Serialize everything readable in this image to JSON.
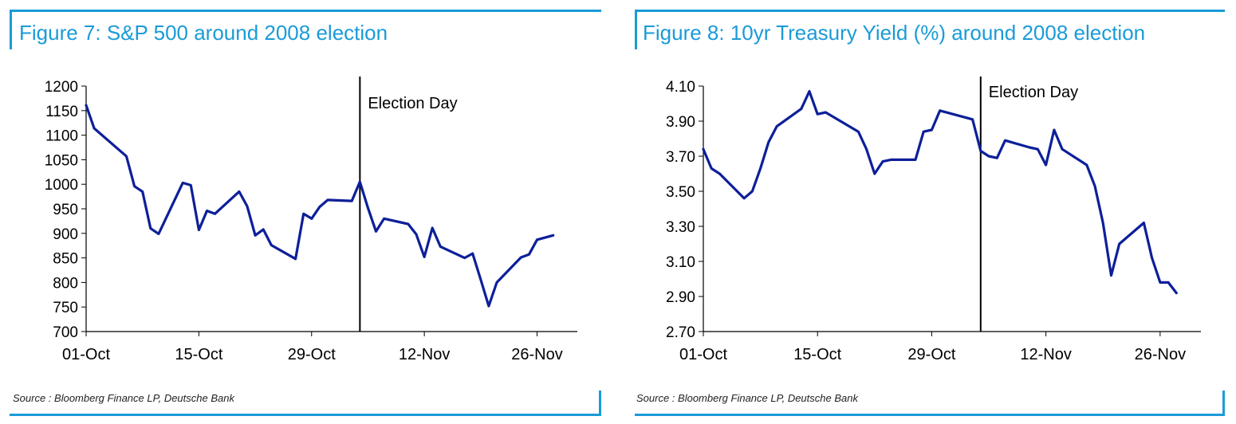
{
  "charts": [
    {
      "title": "Figure 7: S&P 500 around 2008 election",
      "source": "Source : Bloomberg Finance LP, Deutsche Bank",
      "line_color": "#0d1f99",
      "accent_color": "#1a9bd7",
      "chart_data": {
        "type": "line",
        "title": "Figure 7: S&P 500 around 2008 election",
        "xlabel": "",
        "ylabel": "",
        "ylim": [
          700,
          1200
        ],
        "yticks": [
          700,
          750,
          800,
          850,
          900,
          950,
          1000,
          1050,
          1100,
          1150,
          1200
        ],
        "ytick_labels": [
          "700",
          "750",
          "800",
          "850",
          "900",
          "950",
          "1000",
          "1050",
          "1100",
          "1150",
          "1200"
        ],
        "xlim": [
          "2008-10-01",
          "2008-12-01"
        ],
        "xticks": [
          "2008-10-01",
          "2008-10-15",
          "2008-10-29",
          "2008-11-12",
          "2008-11-26"
        ],
        "xtick_labels": [
          "01-Oct",
          "15-Oct",
          "29-Oct",
          "12-Nov",
          "26-Nov"
        ],
        "grid": false,
        "annotation": {
          "date": "2008-11-04",
          "label": "Election Day"
        },
        "series": [
          {
            "x": [
              "2008-10-01",
              "2008-10-02",
              "2008-10-06",
              "2008-10-07",
              "2008-10-08",
              "2008-10-09",
              "2008-10-10",
              "2008-10-13",
              "2008-10-14",
              "2008-10-15",
              "2008-10-16",
              "2008-10-17",
              "2008-10-20",
              "2008-10-21",
              "2008-10-22",
              "2008-10-23",
              "2008-10-24",
              "2008-10-27",
              "2008-10-28",
              "2008-10-29",
              "2008-10-30",
              "2008-10-31",
              "2008-11-03",
              "2008-11-04",
              "2008-11-05",
              "2008-11-06",
              "2008-11-07",
              "2008-11-10",
              "2008-11-11",
              "2008-11-12",
              "2008-11-13",
              "2008-11-14",
              "2008-11-17",
              "2008-11-18",
              "2008-11-19",
              "2008-11-20",
              "2008-11-21",
              "2008-11-24",
              "2008-11-25",
              "2008-11-26",
              "2008-11-28"
            ],
            "y": [
              1161,
              1114,
              1057,
              996,
              985,
              910,
              899,
              1003,
              998,
              907,
              946,
              940,
              985,
              955,
              896,
              908,
              876,
              848,
              940,
              930,
              954,
              968,
              966,
              1005,
              952,
              904,
              930,
              919,
              898,
              852,
              911,
              873,
              850,
              859,
              806,
              752,
              800,
              851,
              857,
              887,
              896
            ]
          }
        ]
      }
    },
    {
      "title": "Figure 8: 10yr Treasury Yield (%) around 2008 election",
      "source": "Source : Bloomberg Finance LP, Deutsche Bank",
      "line_color": "#0d1f99",
      "accent_color": "#1a9bd7",
      "chart_data": {
        "type": "line",
        "title": "Figure 8: 10yr Treasury Yield (%) around 2008 election",
        "xlabel": "",
        "ylabel": "",
        "ylim": [
          2.7,
          4.1
        ],
        "yticks": [
          2.7,
          2.9,
          3.1,
          3.3,
          3.5,
          3.7,
          3.9,
          4.1
        ],
        "ytick_labels": [
          "2.70",
          "2.90",
          "3.10",
          "3.30",
          "3.50",
          "3.70",
          "3.90",
          "4.10"
        ],
        "xlim": [
          "2008-10-01",
          "2008-12-01"
        ],
        "xticks": [
          "2008-10-01",
          "2008-10-15",
          "2008-10-29",
          "2008-11-12",
          "2008-11-26"
        ],
        "xtick_labels": [
          "01-Oct",
          "15-Oct",
          "29-Oct",
          "12-Nov",
          "26-Nov"
        ],
        "grid": false,
        "annotation": {
          "date": "2008-11-04",
          "label": "Election Day"
        },
        "series": [
          {
            "x": [
              "2008-10-01",
              "2008-10-02",
              "2008-10-03",
              "2008-10-06",
              "2008-10-07",
              "2008-10-08",
              "2008-10-09",
              "2008-10-10",
              "2008-10-13",
              "2008-10-14",
              "2008-10-15",
              "2008-10-16",
              "2008-10-20",
              "2008-10-21",
              "2008-10-22",
              "2008-10-23",
              "2008-10-24",
              "2008-10-27",
              "2008-10-28",
              "2008-10-29",
              "2008-10-30",
              "2008-11-03",
              "2008-11-04",
              "2008-11-05",
              "2008-11-06",
              "2008-11-07",
              "2008-11-10",
              "2008-11-11",
              "2008-11-12",
              "2008-11-13",
              "2008-11-14",
              "2008-11-17",
              "2008-11-18",
              "2008-11-19",
              "2008-11-20",
              "2008-11-21",
              "2008-11-24",
              "2008-11-25",
              "2008-11-26",
              "2008-11-27",
              "2008-11-28"
            ],
            "y": [
              3.74,
              3.63,
              3.6,
              3.46,
              3.5,
              3.63,
              3.78,
              3.87,
              3.97,
              4.07,
              3.94,
              3.95,
              3.84,
              3.74,
              3.6,
              3.67,
              3.68,
              3.68,
              3.84,
              3.85,
              3.96,
              3.91,
              3.73,
              3.7,
              3.69,
              3.79,
              3.75,
              3.74,
              3.65,
              3.85,
              3.74,
              3.65,
              3.53,
              3.32,
              3.02,
              3.2,
              3.32,
              3.12,
              2.98,
              2.98,
              2.92
            ]
          }
        ]
      }
    }
  ]
}
